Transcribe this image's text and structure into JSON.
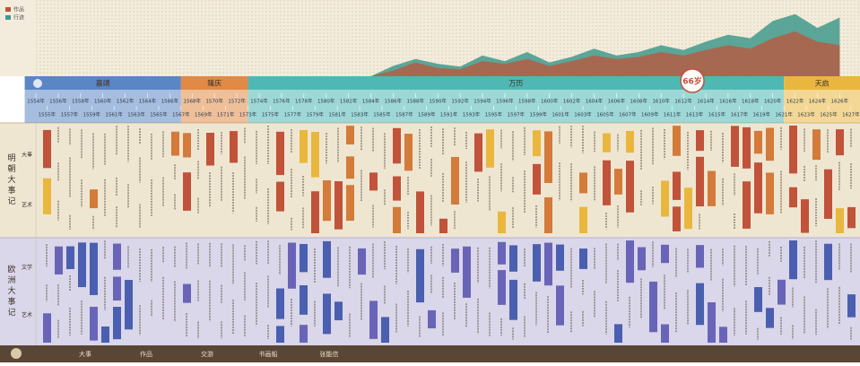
{
  "legend": [
    {
      "name": "作品",
      "color": "#c0533a"
    },
    {
      "name": "行迹",
      "color": "#3f9a8c"
    }
  ],
  "chart_data": {
    "type": "area",
    "x": [
      1554,
      1556,
      1558,
      1560,
      1562,
      1564,
      1566,
      1568,
      1570,
      1572,
      1574,
      1576,
      1578,
      1580,
      1582,
      1584,
      1586,
      1588,
      1590,
      1592,
      1594,
      1596,
      1598,
      1600,
      1602,
      1604,
      1606,
      1608,
      1610,
      1612,
      1614,
      1616,
      1618,
      1620,
      1622,
      1624,
      1626
    ],
    "ylim": [
      0,
      100
    ],
    "series": [
      {
        "name": "行迹",
        "color": "#3f9a8c",
        "values": [
          0,
          0,
          0,
          0,
          0,
          0,
          0,
          0,
          0,
          0,
          0,
          0,
          0,
          0,
          0,
          0,
          15,
          25,
          18,
          14,
          30,
          22,
          35,
          20,
          28,
          40,
          30,
          35,
          45,
          38,
          50,
          60,
          55,
          80,
          90,
          70,
          85
        ]
      },
      {
        "name": "作品",
        "color": "#c0533a",
        "values": [
          0,
          0,
          0,
          0,
          0,
          0,
          0,
          0,
          0,
          0,
          0,
          0,
          0,
          0,
          0,
          0,
          8,
          20,
          12,
          10,
          22,
          18,
          25,
          15,
          22,
          30,
          25,
          28,
          35,
          30,
          38,
          45,
          40,
          55,
          65,
          50,
          45
        ]
      }
    ]
  },
  "reigns": [
    {
      "name": "嘉靖",
      "color": "#5b86c5"
    },
    {
      "name": "隆庆",
      "color": "#e08a45"
    },
    {
      "name": "万历",
      "color": "#4fb8b4"
    },
    {
      "name": "天启",
      "color": "#e9b73e"
    }
  ],
  "badge": "66岁",
  "years": [
    "1554年",
    "1555年",
    "1556年",
    "1557年",
    "1558年",
    "1559年",
    "1560年",
    "1561年",
    "1562年",
    "1563年",
    "1564年",
    "1565年",
    "1566年",
    "1567年",
    "1568年",
    "1569年",
    "1570年",
    "1571年",
    "1572年",
    "1573年",
    "1574年",
    "1575年",
    "1576年",
    "1577年",
    "1578年",
    "1579年",
    "1580年",
    "1581年",
    "1582年",
    "1583年",
    "1584年",
    "1585年",
    "1586年",
    "1587年",
    "1588年",
    "1589年",
    "1590年",
    "1591年",
    "1592年",
    "1593年",
    "1594年",
    "1595年",
    "1596年",
    "1597年",
    "1598年",
    "1599年",
    "1600年",
    "1601年",
    "1602年",
    "1603年",
    "1604年",
    "1605年",
    "1606年",
    "1607年",
    "1608年",
    "1609年",
    "1610年",
    "1611年",
    "1612年",
    "1613年",
    "1614年",
    "1615年",
    "1616年",
    "1617年",
    "1618年",
    "1619年",
    "1620年",
    "1621年",
    "1622年",
    "1623年",
    "1624年",
    "1625年",
    "1626年",
    "1627年"
  ],
  "sections": [
    {
      "title": "明朝大事记",
      "rows": [
        "大事",
        "艺术"
      ]
    },
    {
      "title": "欧洲大事记",
      "rows": [
        "文学",
        "艺术"
      ]
    }
  ],
  "nav": [
    "大事",
    "作品",
    "交游",
    "书画船",
    "张能信"
  ]
}
